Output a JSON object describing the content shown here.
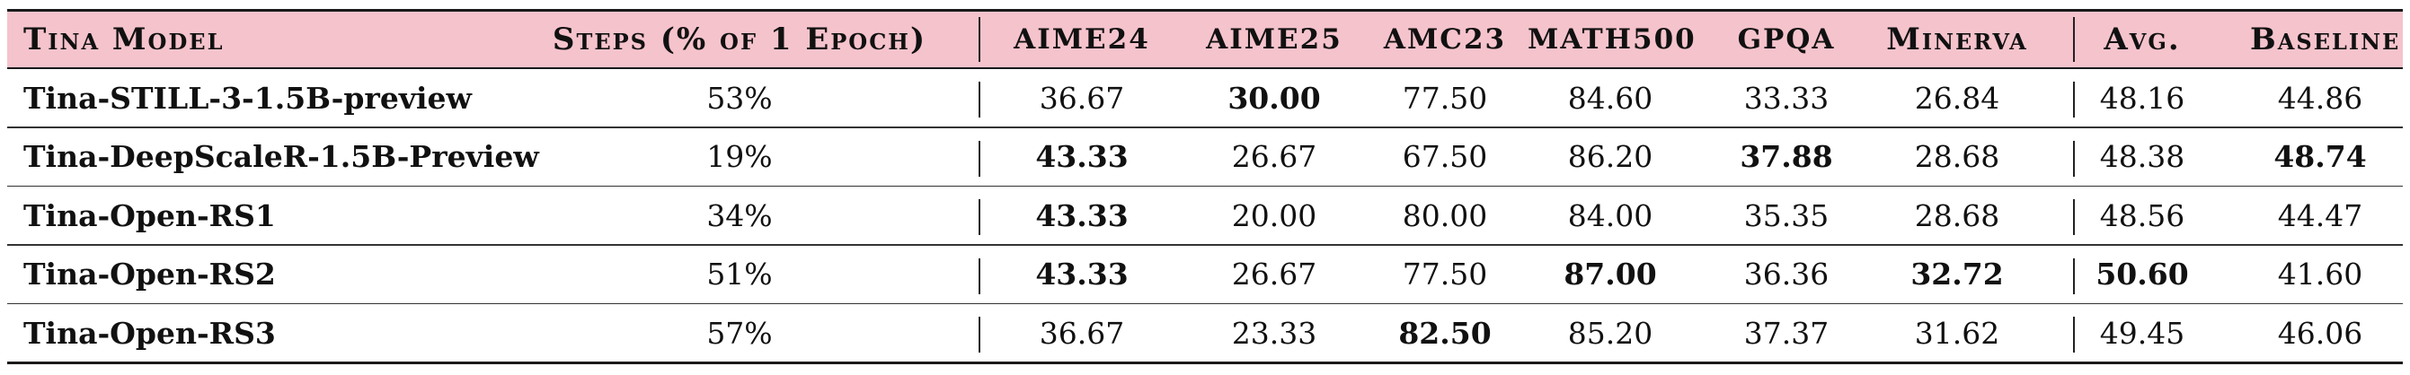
{
  "table": {
    "headers": {
      "model": "Tina Model",
      "steps": "Steps (% of 1 Epoch)",
      "aime24": "AIME24",
      "aime25": "AIME25",
      "amc23": "AMC23",
      "math500": "MATH500",
      "gpqa": "GPQA",
      "minerva": "Minerva",
      "avg": "Avg.",
      "baseline": "Baseline"
    },
    "rows": [
      {
        "model": "Tina-STILL-3-1.5B-preview",
        "steps": "53%",
        "aime24": "36.67",
        "aime25": "30.00",
        "amc23": "77.50",
        "math500": "84.60",
        "gpqa": "33.33",
        "minerva": "26.84",
        "avg": "48.16",
        "baseline": "44.86"
      },
      {
        "model": "Tina-DeepScaleR-1.5B-Preview",
        "steps": "19%",
        "aime24": "43.33",
        "aime25": "26.67",
        "amc23": "67.50",
        "math500": "86.20",
        "gpqa": "37.88",
        "minerva": "28.68",
        "avg": "48.38",
        "baseline": "48.74"
      },
      {
        "model": "Tina-Open-RS1",
        "steps": "34%",
        "aime24": "43.33",
        "aime25": "20.00",
        "amc23": "80.00",
        "math500": "84.00",
        "gpqa": "35.35",
        "minerva": "28.68",
        "avg": "48.56",
        "baseline": "44.47"
      },
      {
        "model": "Tina-Open-RS2",
        "steps": "51%",
        "aime24": "43.33",
        "aime25": "26.67",
        "amc23": "77.50",
        "math500": "87.00",
        "gpqa": "36.36",
        "minerva": "32.72",
        "avg": "50.60",
        "baseline": "41.60"
      },
      {
        "model": "Tina-Open-RS3",
        "steps": "57%",
        "aime24": "36.67",
        "aime25": "23.33",
        "amc23": "82.50",
        "math500": "85.20",
        "gpqa": "37.37",
        "minerva": "31.62",
        "avg": "49.45",
        "baseline": "46.06"
      }
    ],
    "header_background": "#f5c3cc",
    "bold_cells": [
      "0.aime25",
      "1.aime24",
      "1.gpqa",
      "1.baseline",
      "2.aime24",
      "3.aime24",
      "3.math500",
      "3.minerva",
      "3.avg",
      "4.amc23"
    ]
  }
}
